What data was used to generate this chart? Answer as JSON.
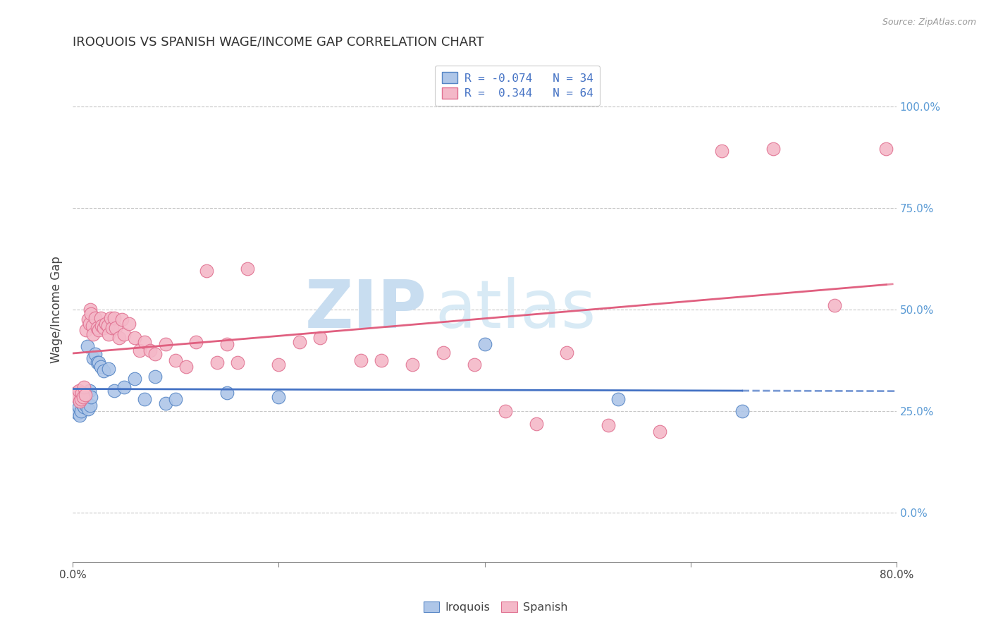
{
  "title": "IROQUOIS VS SPANISH WAGE/INCOME GAP CORRELATION CHART",
  "source": "Source: ZipAtlas.com",
  "ylabel": "Wage/Income Gap",
  "xlim": [
    0.0,
    0.8
  ],
  "ylim": [
    -0.12,
    1.12
  ],
  "right_yticks": [
    0.0,
    0.25,
    0.5,
    0.75,
    1.0
  ],
  "right_yticklabels": [
    "0.0%",
    "25.0%",
    "50.0%",
    "75.0%",
    "100.0%"
  ],
  "xticks": [
    0.0,
    0.2,
    0.4,
    0.6,
    0.8
  ],
  "xticklabels": [
    "0.0%",
    "",
    "",
    "",
    "80.0%"
  ],
  "legend_r1_val": "-0.074",
  "legend_n1_val": "34",
  "legend_r2_val": "0.344",
  "legend_n2_val": "64",
  "iroquois_color": "#aec6e8",
  "spanish_color": "#f4b8c8",
  "iroquois_edge_color": "#5585c5",
  "spanish_edge_color": "#e07090",
  "iroquois_line_color": "#4472c4",
  "spanish_line_color": "#e06080",
  "background_color": "#ffffff",
  "grid_color": "#c8c8c8",
  "watermark_color": "#ddeef8",
  "iroquois_x": [
    0.003,
    0.005,
    0.006,
    0.007,
    0.008,
    0.009,
    0.01,
    0.011,
    0.012,
    0.013,
    0.014,
    0.015,
    0.016,
    0.017,
    0.018,
    0.02,
    0.022,
    0.024,
    0.025,
    0.027,
    0.03,
    0.035,
    0.04,
    0.05,
    0.06,
    0.07,
    0.08,
    0.09,
    0.1,
    0.15,
    0.2,
    0.4,
    0.53,
    0.65
  ],
  "iroquois_y": [
    0.285,
    0.245,
    0.26,
    0.24,
    0.25,
    0.27,
    0.275,
    0.26,
    0.28,
    0.265,
    0.41,
    0.255,
    0.3,
    0.265,
    0.285,
    0.38,
    0.39,
    0.37,
    0.37,
    0.36,
    0.35,
    0.355,
    0.3,
    0.31,
    0.33,
    0.28,
    0.335,
    0.27,
    0.28,
    0.295,
    0.285,
    0.415,
    0.28,
    0.25
  ],
  "spanish_x": [
    0.003,
    0.005,
    0.006,
    0.007,
    0.008,
    0.009,
    0.01,
    0.011,
    0.012,
    0.013,
    0.015,
    0.016,
    0.017,
    0.018,
    0.019,
    0.02,
    0.022,
    0.024,
    0.025,
    0.027,
    0.028,
    0.03,
    0.032,
    0.034,
    0.035,
    0.037,
    0.038,
    0.04,
    0.042,
    0.045,
    0.048,
    0.05,
    0.055,
    0.06,
    0.065,
    0.07,
    0.075,
    0.08,
    0.09,
    0.1,
    0.11,
    0.12,
    0.13,
    0.14,
    0.15,
    0.16,
    0.17,
    0.2,
    0.22,
    0.24,
    0.28,
    0.3,
    0.33,
    0.36,
    0.39,
    0.42,
    0.45,
    0.48,
    0.52,
    0.57,
    0.63,
    0.68,
    0.74,
    0.79
  ],
  "spanish_y": [
    0.295,
    0.285,
    0.3,
    0.275,
    0.28,
    0.295,
    0.285,
    0.31,
    0.29,
    0.45,
    0.475,
    0.465,
    0.5,
    0.49,
    0.46,
    0.44,
    0.48,
    0.455,
    0.45,
    0.48,
    0.46,
    0.455,
    0.465,
    0.46,
    0.44,
    0.48,
    0.455,
    0.48,
    0.455,
    0.43,
    0.475,
    0.44,
    0.465,
    0.43,
    0.4,
    0.42,
    0.4,
    0.39,
    0.415,
    0.375,
    0.36,
    0.42,
    0.595,
    0.37,
    0.415,
    0.37,
    0.6,
    0.365,
    0.42,
    0.43,
    0.375,
    0.375,
    0.365,
    0.395,
    0.365,
    0.25,
    0.22,
    0.395,
    0.215,
    0.2,
    0.89,
    0.895,
    0.51,
    0.895
  ]
}
